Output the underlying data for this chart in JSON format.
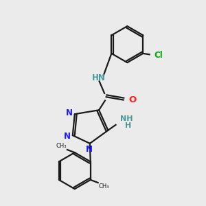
{
  "background_color": "#ebebeb",
  "bond_color": "#1a1a1a",
  "nitrogen_color": "#1a1aff",
  "oxygen_color": "#ff2020",
  "chlorine_color": "#00aa00",
  "nh_color": "#4a9a9a",
  "figsize": [
    3.0,
    3.0
  ],
  "dpi": 100,
  "xlim": [
    0,
    10
  ],
  "ylim": [
    0,
    10
  ],
  "lw": 1.6,
  "fs": 8.5,
  "hex_r": 0.9,
  "tri_lw": 1.6
}
